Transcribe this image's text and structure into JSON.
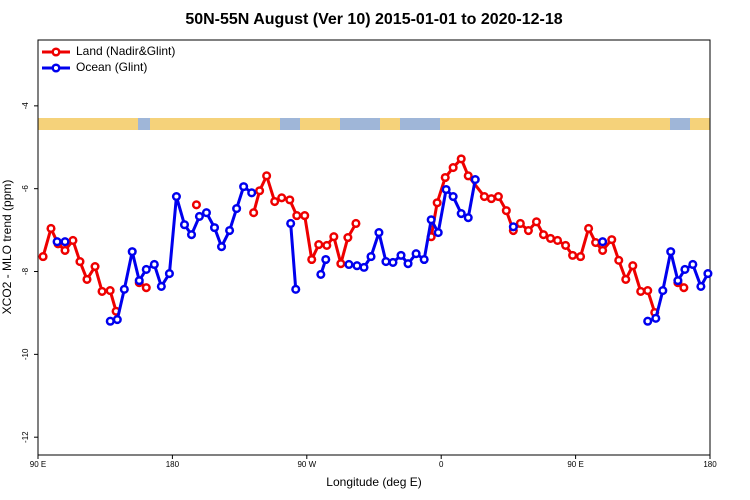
{
  "chart_data": {
    "type": "line",
    "title": "50N-55N August (Ver 10)   2015-01-01 to 2020-12-18",
    "x_label": "Longitude (deg E)",
    "y_label": "XCO2 - MLO trend (ppm)",
    "xlim": [
      90,
      540
    ],
    "xticks": [
      {
        "value": 90,
        "label": "90 E"
      },
      180,
      {
        "value": 270,
        "label": "90 W"
      },
      {
        "value": 360,
        "label": "0"
      },
      {
        "value": 450,
        "label": "90 E"
      },
      {
        "value": 540,
        "label": "180"
      }
    ],
    "ylim": [
      -12.43,
      -2.41
    ],
    "yticks": [
      -4,
      -6,
      -8,
      -10,
      -12
    ],
    "legend": "top-left",
    "series": [
      {
        "name": "Land (Nadir&Glint)",
        "color": "#ee0000",
        "x": [
          93.4,
          98.7,
          103.4,
          108.1,
          113.4,
          118.1,
          122.8,
          128.2,
          132.9,
          138.3,
          142.3,
          null,
          157.8,
          162.5,
          null,
          196.1,
          null,
          234.4,
          238.4,
          243.1,
          248.5,
          253.2,
          258.6,
          263.3,
          268.6,
          273.3,
          278.0,
          283.4,
          288.1,
          292.8,
          297.5,
          302.9,
          null,
          353.3,
          357.3,
          362.7,
          368.0,
          373.4,
          378.1,
          388.9,
          393.6,
          398.3,
          403.6,
          408.3,
          413.0,
          418.4,
          423.8,
          428.5,
          433.2,
          437.9,
          443.3,
          448.0,
          453.3,
          458.7,
          463.4,
          468.1,
          474.2,
          478.9,
          483.6,
          488.3,
          493.6,
          498.3,
          503.0,
          null,
          518.5,
          522.5
        ],
        "values": [
          -7.64,
          -6.96,
          -7.33,
          -7.49,
          -7.25,
          -7.76,
          -8.19,
          -7.88,
          -8.48,
          -8.46,
          -8.96,
          null,
          -8.27,
          -8.39,
          null,
          -6.39,
          null,
          -6.58,
          -6.05,
          -5.69,
          -6.31,
          -6.22,
          -6.27,
          -6.65,
          -6.65,
          -7.71,
          -7.35,
          -7.37,
          -7.16,
          -7.81,
          -7.18,
          -6.84,
          null,
          -7.16,
          -6.34,
          -5.73,
          -5.49,
          -5.28,
          -5.69,
          -6.19,
          -6.24,
          -6.19,
          -6.53,
          -7.01,
          -6.84,
          -7.01,
          -6.8,
          -7.11,
          -7.2,
          -7.25,
          -7.37,
          -7.61,
          -7.64,
          -6.96,
          -7.3,
          -7.49,
          -7.23,
          -7.73,
          -8.19,
          -7.86,
          -8.48,
          -8.46,
          -8.99,
          null,
          -8.27,
          -8.39
        ]
      },
      {
        "name": "Ocean (Glint)",
        "color": "#0000ee",
        "x": [
          102.8,
          108.1,
          null,
          138.4,
          143.1,
          147.8,
          153.1,
          157.8,
          162.5,
          167.9,
          172.6,
          178.0,
          182.7,
          188.1,
          192.8,
          198.1,
          202.8,
          208.2,
          212.9,
          218.3,
          223.0,
          227.7,
          233.1,
          null,
          259.2,
          262.6,
          null,
          279.4,
          282.7,
          null,
          298.2,
          303.6,
          308.3,
          313.0,
          318.3,
          323.0,
          327.7,
          333.1,
          337.8,
          343.2,
          348.6,
          353.3,
          358.0,
          363.3,
          368.0,
          373.4,
          378.1,
          382.8,
          null,
          408.3,
          null,
          468.1,
          null,
          498.3,
          503.7,
          508.4,
          513.7,
          518.5,
          523.2,
          528.5,
          533.9,
          538.6
        ],
        "values": [
          -7.28,
          -7.28,
          null,
          -9.2,
          -9.16,
          -8.43,
          -7.52,
          -8.22,
          -7.95,
          -7.83,
          -8.36,
          -8.05,
          -6.19,
          -6.87,
          -7.11,
          -6.67,
          -6.58,
          -6.94,
          -7.4,
          -7.01,
          -6.48,
          -5.95,
          -6.1,
          null,
          -6.84,
          -8.43,
          null,
          -8.07,
          -7.71,
          null,
          -7.83,
          -7.86,
          -7.9,
          -7.64,
          -7.06,
          -7.76,
          -7.78,
          -7.61,
          -7.81,
          -7.57,
          -7.71,
          -6.75,
          -7.06,
          -6.02,
          -6.19,
          -6.6,
          -6.7,
          -5.78,
          null,
          -6.92,
          null,
          -7.28,
          null,
          -9.2,
          -9.13,
          -8.46,
          -7.52,
          -8.22,
          -7.95,
          -7.83,
          -8.36,
          -8.05
        ]
      }
    ]
  }
}
